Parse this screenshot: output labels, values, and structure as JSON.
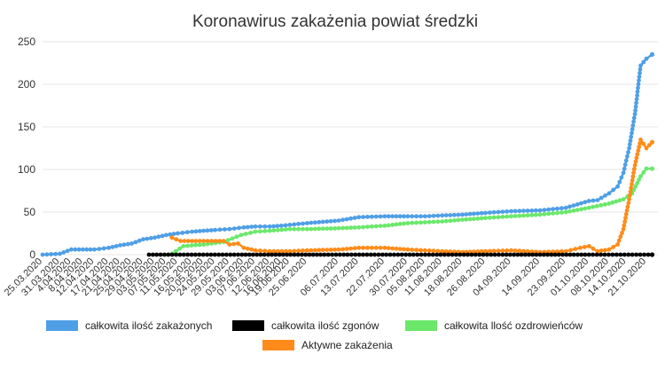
{
  "chart_data": {
    "type": "line",
    "title": "Koronawirus zakażenia powiat średzki",
    "xlabel": "",
    "ylabel": "",
    "ylim": [
      0,
      250
    ],
    "yticks": [
      0,
      50,
      100,
      150,
      200,
      250
    ],
    "xlim": [
      "2020-03-25",
      "2020-10-25"
    ],
    "grid": true,
    "legend_position": "bottom",
    "xticks": [
      "25.03.2020",
      "31.03.2020",
      "4.04.2020",
      "8.04.2020",
      "12.04.2020",
      "17.04.2020",
      "21.04.2020",
      "25.04.2020",
      "29.04.2020",
      "03.05.2020",
      "07.05.2020",
      "11.05.2020",
      "16.05.2020",
      "20.05.2020",
      "24.05.2020",
      "29.05.2020",
      "03.06.2020",
      "07.06.2020",
      "12.06.2020",
      "16.06.2020",
      "19.06.2020",
      "25.06.2020",
      "06.07.2020",
      "13.07.2020",
      "22.07.2020",
      "30.07.2020",
      "05.08.2020",
      "11.08.2020",
      "18.08.2020",
      "26.08.2020",
      "04.09.2020",
      "14.09.2020",
      "23.09.2020",
      "01.10.2020",
      "08.10.2020",
      "14.10.2020",
      "21.10.2020"
    ],
    "series": [
      {
        "name": "całkowita ilość zakażonych",
        "color": "#4f9fe6",
        "points": [
          [
            "2020-03-25",
            0
          ],
          [
            "2020-03-31",
            1
          ],
          [
            "2020-04-04",
            6
          ],
          [
            "2020-04-08",
            6
          ],
          [
            "2020-04-12",
            6
          ],
          [
            "2020-04-17",
            8
          ],
          [
            "2020-04-21",
            11
          ],
          [
            "2020-04-25",
            13
          ],
          [
            "2020-04-29",
            18
          ],
          [
            "2020-05-03",
            20
          ],
          [
            "2020-05-07",
            23
          ],
          [
            "2020-05-11",
            25
          ],
          [
            "2020-05-16",
            27
          ],
          [
            "2020-05-20",
            28
          ],
          [
            "2020-05-24",
            29
          ],
          [
            "2020-05-29",
            30
          ],
          [
            "2020-06-03",
            32
          ],
          [
            "2020-06-07",
            33
          ],
          [
            "2020-06-12",
            33
          ],
          [
            "2020-06-16",
            34
          ],
          [
            "2020-06-19",
            35
          ],
          [
            "2020-06-25",
            37
          ],
          [
            "2020-07-06",
            40
          ],
          [
            "2020-07-13",
            44
          ],
          [
            "2020-07-22",
            45
          ],
          [
            "2020-07-30",
            45
          ],
          [
            "2020-08-05",
            45
          ],
          [
            "2020-08-11",
            46
          ],
          [
            "2020-08-18",
            47
          ],
          [
            "2020-08-26",
            49
          ],
          [
            "2020-09-04",
            51
          ],
          [
            "2020-09-14",
            52
          ],
          [
            "2020-09-23",
            55
          ],
          [
            "2020-10-01",
            63
          ],
          [
            "2020-10-04",
            64
          ],
          [
            "2020-10-08",
            72
          ],
          [
            "2020-10-11",
            80
          ],
          [
            "2020-10-13",
            96
          ],
          [
            "2020-10-15",
            125
          ],
          [
            "2020-10-17",
            165
          ],
          [
            "2020-10-19",
            222
          ],
          [
            "2020-10-21",
            230
          ],
          [
            "2020-10-23",
            235
          ]
        ]
      },
      {
        "name": "całkowita ilość zgonów",
        "color": "#000000",
        "points": [
          [
            "2020-05-01",
            0
          ],
          [
            "2020-06-01",
            0
          ],
          [
            "2020-07-01",
            0
          ],
          [
            "2020-08-01",
            0
          ],
          [
            "2020-09-01",
            0
          ],
          [
            "2020-10-01",
            0
          ],
          [
            "2020-10-23",
            0
          ]
        ]
      },
      {
        "name": "całkowita llość ozdrowieńców",
        "color": "#6be86b",
        "points": [
          [
            "2020-05-09",
            1
          ],
          [
            "2020-05-13",
            10
          ],
          [
            "2020-05-20",
            12
          ],
          [
            "2020-05-27",
            15
          ],
          [
            "2020-06-02",
            23
          ],
          [
            "2020-06-07",
            27
          ],
          [
            "2020-06-12",
            28
          ],
          [
            "2020-06-19",
            30
          ],
          [
            "2020-06-25",
            30
          ],
          [
            "2020-07-06",
            31
          ],
          [
            "2020-07-13",
            32
          ],
          [
            "2020-07-22",
            34
          ],
          [
            "2020-07-30",
            37
          ],
          [
            "2020-08-05",
            38
          ],
          [
            "2020-08-11",
            39
          ],
          [
            "2020-08-18",
            41
          ],
          [
            "2020-08-26",
            43
          ],
          [
            "2020-09-04",
            45
          ],
          [
            "2020-09-14",
            47
          ],
          [
            "2020-09-23",
            50
          ],
          [
            "2020-10-01",
            55
          ],
          [
            "2020-10-08",
            60
          ],
          [
            "2020-10-13",
            65
          ],
          [
            "2020-10-16",
            72
          ],
          [
            "2020-10-19",
            92
          ],
          [
            "2020-10-21",
            101
          ],
          [
            "2020-10-23",
            101
          ]
        ]
      },
      {
        "name": "Aktywne zakażenia",
        "color": "#ff8c1a",
        "points": [
          [
            "2020-05-09",
            20
          ],
          [
            "2020-05-12",
            16
          ],
          [
            "2020-05-20",
            16
          ],
          [
            "2020-05-27",
            16
          ],
          [
            "2020-05-29",
            12
          ],
          [
            "2020-06-01",
            13
          ],
          [
            "2020-06-03",
            8
          ],
          [
            "2020-06-07",
            5
          ],
          [
            "2020-06-12",
            4
          ],
          [
            "2020-06-19",
            4
          ],
          [
            "2020-06-25",
            5
          ],
          [
            "2020-07-06",
            6
          ],
          [
            "2020-07-13",
            8
          ],
          [
            "2020-07-22",
            8
          ],
          [
            "2020-07-30",
            6
          ],
          [
            "2020-08-05",
            5
          ],
          [
            "2020-08-11",
            4
          ],
          [
            "2020-08-18",
            3
          ],
          [
            "2020-08-26",
            4
          ],
          [
            "2020-09-04",
            5
          ],
          [
            "2020-09-14",
            3
          ],
          [
            "2020-09-23",
            4
          ],
          [
            "2020-09-28",
            8
          ],
          [
            "2020-10-01",
            10
          ],
          [
            "2020-10-04",
            4
          ],
          [
            "2020-10-08",
            6
          ],
          [
            "2020-10-11",
            12
          ],
          [
            "2020-10-13",
            30
          ],
          [
            "2020-10-15",
            65
          ],
          [
            "2020-10-17",
            105
          ],
          [
            "2020-10-19",
            135
          ],
          [
            "2020-10-21",
            125
          ],
          [
            "2020-10-23",
            132
          ]
        ]
      }
    ]
  }
}
